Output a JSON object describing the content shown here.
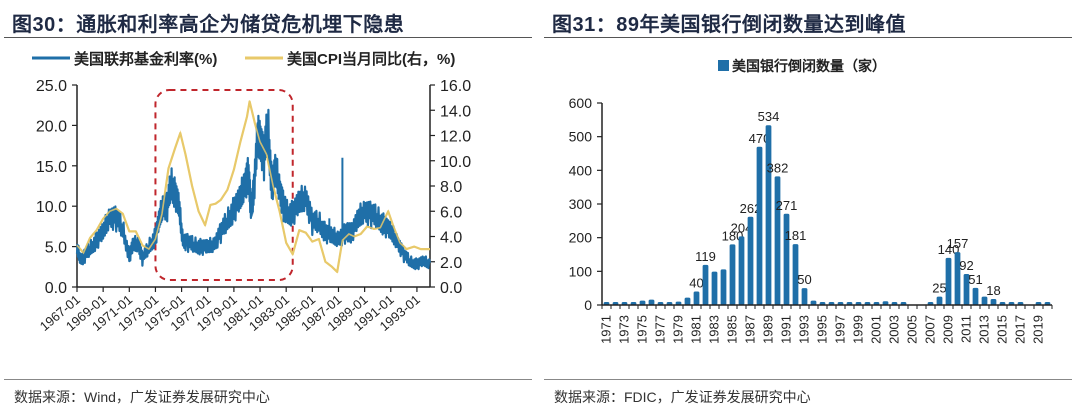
{
  "figures": [
    {
      "title": "图30：通胀和利率高企为储贷危机埋下隐患",
      "source": "数据来源：Wind，广发证券发展研究中心"
    },
    {
      "title": "图31：89年美国银行倒闭数量达到峰值",
      "source": "数据来源：FDIC，广发证券发展研究中心"
    }
  ],
  "colors": {
    "blue": "#1f6fa8",
    "gold": "#e8c96a",
    "red_box": "#c0262c",
    "axis": "#222222"
  },
  "chart_data": [
    {
      "type": "line",
      "title": "通胀和利率高企为储贷危机埋下隐患",
      "legend": [
        "美国联邦基金利率(%)",
        "美国CPI当月同比(右，%)"
      ],
      "legend_placement": "top",
      "x_ticks": [
        "1967-01",
        "1969-01",
        "1971-01",
        "1973-01",
        "1975-01",
        "1977-01",
        "1979-01",
        "1981-01",
        "1983-01",
        "1985-01",
        "1987-01",
        "1989-01",
        "1991-01",
        "1993-01"
      ],
      "x_range": [
        1967.0,
        1994.0
      ],
      "ylim_left": [
        0,
        25
      ],
      "yticks_left": [
        "0.0",
        "5.0",
        "10.0",
        "15.0",
        "20.0",
        "25.0"
      ],
      "ylim_right": [
        0,
        16
      ],
      "yticks_right": [
        "0.0",
        "2.0",
        "4.0",
        "6.0",
        "8.0",
        "10.0",
        "12.0",
        "14.0",
        "16.0"
      ],
      "annotation": "dashed red rounded box highlighting 1973–1983",
      "highlight_range": [
        1973.0,
        1983.5
      ],
      "series": [
        {
          "name": "美国联邦基金利率(%)",
          "axis": "left",
          "x": [
            1967.0,
            1967.3,
            1967.6,
            1968.0,
            1968.5,
            1969.0,
            1969.5,
            1970.0,
            1970.5,
            1971.0,
            1971.3,
            1971.7,
            1972.0,
            1972.5,
            1973.0,
            1973.3,
            1973.6,
            1973.9,
            1974.2,
            1974.5,
            1974.8,
            1975.1,
            1975.5,
            1976.0,
            1976.5,
            1977.0,
            1977.5,
            1978.0,
            1978.5,
            1979.0,
            1979.5,
            1979.8,
            1980.1,
            1980.3,
            1980.5,
            1980.8,
            1981.0,
            1981.3,
            1981.6,
            1981.9,
            1982.2,
            1982.5,
            1982.8,
            1983.0,
            1983.5,
            1984.0,
            1984.5,
            1985.0,
            1985.5,
            1986.0,
            1986.5,
            1987.0,
            1987.5,
            1987.8,
            1988.0,
            1988.5,
            1989.0,
            1989.5,
            1990.0,
            1990.5,
            1991.0,
            1991.5,
            1992.0,
            1992.5,
            1993.0,
            1993.5,
            1994.0
          ],
          "values": [
            4.5,
            3.5,
            3.9,
            4.6,
            6.0,
            6.5,
            9.0,
            8.5,
            7.0,
            4.0,
            5.0,
            5.5,
            3.5,
            4.8,
            6.5,
            8.0,
            10.5,
            10.0,
            12.5,
            12.0,
            9.5,
            6.0,
            5.5,
            5.0,
            5.2,
            4.7,
            5.5,
            6.8,
            8.0,
            10.0,
            10.5,
            13.0,
            14.0,
            9.5,
            12.0,
            17.5,
            19.0,
            16.0,
            19.5,
            13.0,
            14.0,
            12.5,
            10.0,
            9.0,
            9.5,
            10.0,
            11.5,
            8.0,
            7.8,
            7.0,
            6.0,
            6.2,
            6.7,
            6.5,
            7.0,
            8.0,
            9.8,
            9.0,
            8.3,
            8.0,
            6.5,
            5.8,
            4.0,
            3.0,
            3.0,
            3.0,
            3.0
          ]
        },
        {
          "name": "美国CPI当月同比(右，%)",
          "axis": "right",
          "x": [
            1967.0,
            1967.5,
            1968.0,
            1968.5,
            1969.0,
            1969.5,
            1970.0,
            1970.5,
            1971.0,
            1971.5,
            1972.0,
            1972.5,
            1973.0,
            1973.5,
            1974.0,
            1974.5,
            1974.9,
            1975.3,
            1975.8,
            1976.3,
            1976.8,
            1977.2,
            1977.6,
            1978.0,
            1978.5,
            1979.0,
            1979.5,
            1980.0,
            1980.2,
            1980.6,
            1981.0,
            1981.5,
            1982.0,
            1982.5,
            1983.0,
            1983.5,
            1984.0,
            1984.5,
            1985.0,
            1985.5,
            1986.0,
            1986.5,
            1986.9,
            1987.3,
            1987.8,
            1988.2,
            1988.7,
            1989.2,
            1989.7,
            1990.2,
            1990.8,
            1991.2,
            1991.7,
            1992.2,
            1992.8,
            1993.3,
            1994.0
          ],
          "values": [
            3.3,
            2.7,
            3.9,
            4.5,
            5.4,
            6.0,
            6.2,
            5.8,
            4.4,
            4.4,
            3.3,
            3.0,
            3.8,
            5.8,
            9.4,
            11.0,
            12.2,
            10.5,
            8.0,
            6.0,
            4.9,
            6.5,
            6.6,
            6.9,
            7.7,
            9.3,
            11.5,
            13.5,
            14.7,
            13.0,
            11.5,
            10.5,
            8.0,
            6.0,
            3.5,
            2.6,
            4.5,
            4.3,
            3.6,
            3.8,
            2.0,
            1.6,
            1.2,
            3.7,
            4.2,
            4.0,
            4.2,
            4.8,
            4.6,
            4.7,
            6.0,
            4.8,
            3.5,
            3.0,
            3.2,
            3.0,
            3.0
          ]
        }
      ]
    },
    {
      "type": "bar",
      "title": "美国银行倒闭数量（家）",
      "legend": [
        "美国银行倒闭数量（家）"
      ],
      "legend_placement": "top",
      "categories": [
        1971,
        1972,
        1973,
        1974,
        1975,
        1976,
        1977,
        1978,
        1979,
        1980,
        1981,
        1982,
        1983,
        1984,
        1985,
        1986,
        1987,
        1988,
        1989,
        1990,
        1991,
        1992,
        1993,
        1994,
        1995,
        1996,
        1997,
        1998,
        1999,
        2000,
        2001,
        2002,
        2003,
        2004,
        2005,
        2006,
        2007,
        2008,
        2009,
        2010,
        2011,
        2012,
        2013,
        2014,
        2015,
        2016,
        2017,
        2018,
        2019,
        2020
      ],
      "x_tick_labels": [
        "1971",
        "1973",
        "1975",
        "1977",
        "1979",
        "1981",
        "1983",
        "1985",
        "1987",
        "1989",
        "1991",
        "1993",
        "1995",
        "1997",
        "1999",
        "2001",
        "2003",
        "2005",
        "2007",
        "2009",
        "2011",
        "2013",
        "2015",
        "2017",
        "2019"
      ],
      "values": [
        7,
        6,
        6,
        5,
        13,
        16,
        6,
        7,
        10,
        22,
        40,
        119,
        99,
        106,
        180,
        204,
        262,
        470,
        534,
        382,
        271,
        181,
        50,
        13,
        6,
        5,
        1,
        3,
        8,
        7,
        4,
        11,
        3,
        4,
        0,
        0,
        3,
        25,
        140,
        157,
        92,
        51,
        25,
        18,
        8,
        5,
        8,
        0,
        4,
        4
      ],
      "data_labels": {
        "1981": "40",
        "1982": "119",
        "1985": "180",
        "1986": "204",
        "1987": "262",
        "1988": "470",
        "1989": "534",
        "1990": "382",
        "1991": "271",
        "1992": "181",
        "1993": "50",
        "2008": "25",
        "2009": "140",
        "2010": "157",
        "2011": "92",
        "2012": "51",
        "2014": "18"
      },
      "ylim": [
        0,
        600
      ],
      "yticks": [
        "0",
        "100",
        "200",
        "300",
        "400",
        "500",
        "600"
      ],
      "xlabel": "",
      "ylabel": ""
    }
  ]
}
